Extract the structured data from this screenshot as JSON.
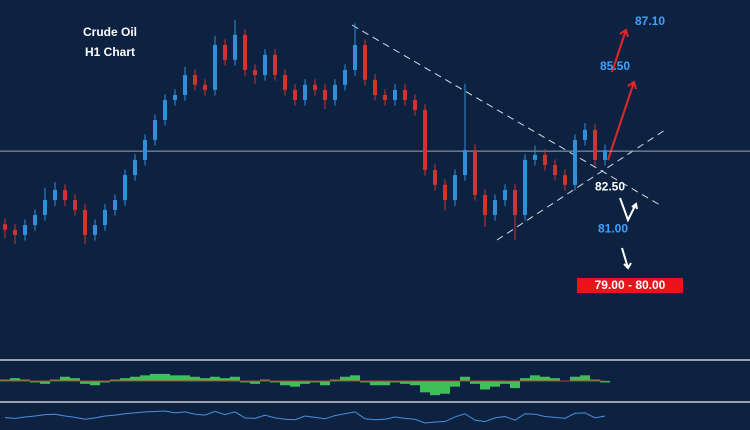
{
  "chart_data": {
    "type": "candlestick",
    "title": "Crude Oil",
    "subtitle": "H1 Chart",
    "open": [
      79.9,
      79.7,
      79.52,
      79.87,
      80.23,
      80.76,
      81.12,
      80.76,
      80.41,
      79.52,
      79.87,
      80.41,
      80.76,
      81.65,
      82.19,
      82.9,
      83.61,
      84.32,
      84.5,
      85.21,
      84.86,
      84.68,
      86.28,
      85.75,
      86.64,
      85.39,
      85.21,
      85.93,
      85.21,
      84.68,
      84.32,
      84.86,
      84.68,
      84.32,
      84.86,
      85.39,
      86.28,
      85.04,
      84.5,
      84.32,
      84.68,
      84.32,
      83.97,
      81.83,
      81.3,
      80.76,
      81.65,
      82.54,
      80.94,
      80.23,
      80.76,
      81.12,
      80.23,
      82.19,
      82.37,
      82.01,
      81.65,
      81.3,
      82.9,
      83.26,
      82.19
    ],
    "high": [
      80.1,
      79.9,
      80.07,
      80.43,
      81.2,
      81.4,
      81.32,
      80.96,
      80.61,
      80.07,
      80.61,
      80.96,
      81.85,
      82.39,
      83.1,
      83.81,
      84.52,
      84.7,
      85.5,
      85.41,
      85.06,
      86.6,
      86.48,
      87.17,
      86.84,
      85.59,
      86.13,
      86.13,
      85.41,
      84.88,
      85.06,
      85.06,
      84.88,
      85.06,
      85.59,
      87.05,
      86.48,
      85.24,
      84.7,
      84.88,
      84.88,
      84.52,
      84.17,
      82.03,
      81.5,
      81.85,
      84.9,
      82.74,
      81.14,
      80.96,
      81.32,
      81.32,
      82.39,
      82.7,
      82.57,
      82.21,
      81.85,
      83.1,
      83.5,
      83.46,
      82.74
    ],
    "low": [
      79.4,
      79.2,
      79.32,
      79.67,
      80.03,
      80.56,
      80.56,
      80.21,
      79.2,
      79.32,
      79.67,
      80.21,
      80.56,
      81.45,
      81.99,
      82.7,
      83.41,
      84.12,
      84.3,
      84.66,
      84.48,
      84.48,
      85.55,
      85.55,
      85.19,
      84.9,
      85.01,
      85.01,
      84.48,
      84.12,
      84.12,
      84.48,
      84.0,
      84.12,
      84.66,
      85.19,
      84.84,
      84.3,
      84.12,
      84.12,
      84.12,
      83.77,
      81.63,
      81.1,
      80.4,
      80.56,
      81.45,
      80.74,
      79.8,
      80.03,
      80.56,
      79.34,
      80.03,
      81.99,
      81.81,
      81.45,
      81.1,
      81.1,
      82.7,
      81.99,
      81.99
    ],
    "close": [
      79.7,
      79.52,
      79.87,
      80.23,
      80.76,
      81.12,
      80.76,
      80.41,
      79.52,
      79.87,
      80.41,
      80.76,
      81.65,
      82.19,
      82.9,
      83.61,
      84.32,
      84.5,
      85.21,
      84.86,
      84.68,
      86.28,
      85.75,
      86.64,
      85.39,
      85.21,
      85.93,
      85.21,
      84.68,
      84.32,
      84.86,
      84.68,
      84.32,
      84.86,
      85.39,
      86.28,
      85.04,
      84.5,
      84.32,
      84.68,
      84.32,
      83.97,
      81.83,
      81.3,
      80.76,
      81.65,
      82.54,
      80.94,
      80.23,
      80.76,
      81.12,
      80.23,
      82.19,
      82.37,
      82.01,
      81.65,
      81.3,
      82.9,
      83.26,
      82.19,
      82.54
    ],
    "up_color": "#2f8fd8",
    "down_color": "#d0342c",
    "ylim": [
      75.14,
      87.88
    ],
    "targets": [
      {
        "value": 87.1,
        "label": "87.10"
      },
      {
        "value": 85.5,
        "label": "85.50"
      },
      {
        "value": 82.5,
        "label": "82.50"
      },
      {
        "value": 81.0,
        "label": "81.00"
      }
    ],
    "range_label": "79.00 - 80.00",
    "oscillator": {
      "values": [
        0.1,
        0.2,
        0.1,
        -0.1,
        -0.2,
        0.1,
        0.3,
        0.2,
        -0.2,
        -0.3,
        -0.1,
        0.1,
        0.2,
        0.3,
        0.4,
        0.5,
        0.5,
        0.4,
        0.4,
        0.3,
        0.2,
        0.3,
        0.2,
        0.3,
        -0.1,
        -0.2,
        0.1,
        -0.1,
        -0.3,
        -0.4,
        -0.2,
        -0.1,
        -0.3,
        0.1,
        0.3,
        0.4,
        -0.1,
        -0.3,
        -0.3,
        -0.1,
        -0.2,
        -0.3,
        -0.8,
        -1.0,
        -0.9,
        -0.4,
        0.3,
        -0.2,
        -0.6,
        -0.4,
        -0.2,
        -0.5,
        0.2,
        0.4,
        0.3,
        0.2,
        0.0,
        0.3,
        0.4,
        0.1,
        -0.1
      ],
      "ylim": [
        -1.2,
        1.2
      ],
      "color": "#3fbf5a"
    },
    "rsi": {
      "values": [
        45,
        42,
        48,
        52,
        58,
        60,
        52,
        46,
        38,
        44,
        52,
        56,
        62,
        66,
        70,
        72,
        74,
        66,
        70,
        60,
        56,
        72,
        58,
        70,
        44,
        42,
        56,
        44,
        38,
        36,
        52,
        46,
        40,
        54,
        62,
        70,
        40,
        36,
        38,
        48,
        42,
        38,
        22,
        26,
        28,
        48,
        62,
        34,
        28,
        44,
        50,
        34,
        62,
        60,
        50,
        46,
        42,
        64,
        66,
        44,
        52
      ],
      "ylim": [
        0,
        100
      ],
      "color": "#4a8fe0"
    }
  }
}
